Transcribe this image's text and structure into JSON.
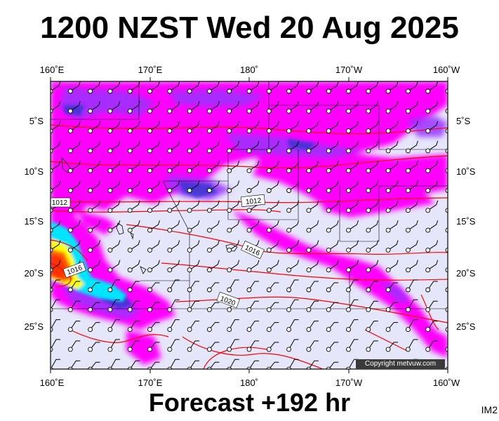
{
  "title": "1200 NZST Wed 20 Aug 2025",
  "footer": "Forecast +192 hr",
  "image_id": "IM2",
  "copyright": "Copyright metvuw.com",
  "axes": {
    "top_lon_labels": [
      "160˚E",
      "170˚E",
      "180˚",
      "170˚W",
      "160˚W"
    ],
    "bottom_lon_labels": [
      "160˚E",
      "170˚E",
      "180˚",
      "170˚W",
      "160˚W"
    ],
    "left_lat_labels": [
      "5˚S",
      "10˚S",
      "15˚S",
      "20˚S",
      "25˚S"
    ],
    "right_lat_labels": [
      "5˚S",
      "10˚S",
      "15˚S",
      "20˚S",
      "25˚S"
    ]
  },
  "isobars": [
    {
      "label": "1012"
    },
    {
      "label": "1012"
    },
    {
      "label": "1016"
    },
    {
      "label": "1016"
    },
    {
      "label": "1020"
    }
  ],
  "colors": {
    "ocean": "#e6e6fa",
    "rain_light": "#ff00ff",
    "rain_medium": "#9933ff",
    "rain_heavy": "#3333cc",
    "rain_extreme_cyan": "#00e5ff",
    "rain_extreme_yellow": "#ffff00",
    "rain_extreme_red": "#ff3300",
    "isobar": "#ff0000",
    "wind_barb": "#000000"
  }
}
